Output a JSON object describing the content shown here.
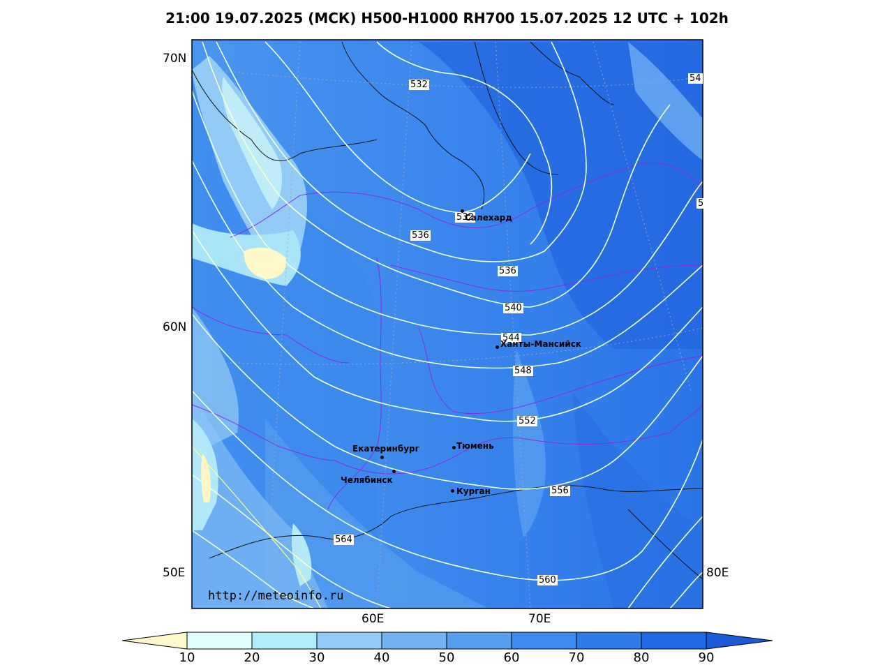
{
  "title": "21:00 19.07.2025 (МСК) H500-H1000 RH700 15.07.2025 12 UTC + 102h",
  "lat_labels": [
    "70N",
    "60N"
  ],
  "lon_labels": [
    "50E",
    "60E",
    "70E",
    "80E"
  ],
  "cities": [
    {
      "name": "Салехард"
    },
    {
      "name": "Ханты-Мансийск"
    },
    {
      "name": "Екатеринбург"
    },
    {
      "name": "Тюмень"
    },
    {
      "name": "Челябинск"
    },
    {
      "name": "Курган"
    }
  ],
  "contour_labels": [
    "532",
    "532",
    "536",
    "536",
    "540",
    "544",
    "548",
    "552",
    "556",
    "560",
    "564",
    "54",
    "5"
  ],
  "colorbar": {
    "ticks": [
      "10",
      "20",
      "30",
      "40",
      "50",
      "60",
      "70",
      "80",
      "90"
    ],
    "colors": [
      "#fffacd",
      "#e0ffff",
      "#b0eef8",
      "#92cbf7",
      "#74b2f4",
      "#579ef0",
      "#3d8bee",
      "#2f7ceb",
      "#1f6ae6",
      "#1a5ad6"
    ]
  },
  "watermark": "http://meteoinfo.ru"
}
